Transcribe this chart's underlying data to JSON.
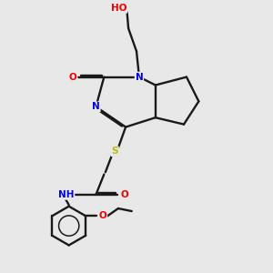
{
  "background_color": "#e8e8e8",
  "bond_color": "#1a1a1a",
  "atom_colors": {
    "N": "#0000ee",
    "O": "#ee0000",
    "S": "#bbbb00",
    "H": "#4a9a9a",
    "C": "#1a1a1a"
  },
  "figsize": [
    3.0,
    3.0
  ],
  "dpi": 100
}
